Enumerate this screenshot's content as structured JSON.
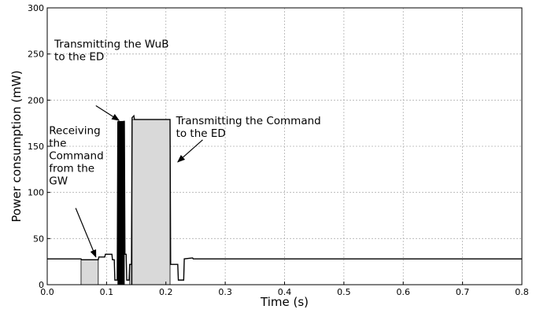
{
  "chart_data": {
    "type": "line",
    "title": "",
    "xlabel": "Time (s)",
    "ylabel": "Power consumption (mW)",
    "xlim": [
      0.0,
      0.8
    ],
    "ylim": [
      0,
      300
    ],
    "grid": true,
    "xticks": [
      "0.0",
      "0.1",
      "0.2",
      "0.3",
      "0.4",
      "0.5",
      "0.6",
      "0.7",
      "0.8"
    ],
    "yticks": [
      "0",
      "50",
      "100",
      "150",
      "200",
      "250",
      "300"
    ],
    "series": [
      {
        "points": [
          [
            0.0,
            28
          ],
          [
            0.057,
            28
          ],
          [
            0.058,
            27
          ],
          [
            0.086,
            27
          ],
          [
            0.087,
            30
          ],
          [
            0.097,
            30
          ],
          [
            0.098,
            33
          ],
          [
            0.109,
            33
          ],
          [
            0.11,
            27
          ],
          [
            0.113,
            27
          ],
          [
            0.114,
            5
          ],
          [
            0.118,
            5
          ],
          [
            0.119,
            176
          ],
          [
            0.13,
            177
          ],
          [
            0.131,
            33
          ],
          [
            0.133,
            33
          ],
          [
            0.134,
            5
          ],
          [
            0.138,
            5
          ],
          [
            0.139,
            22
          ],
          [
            0.142,
            22
          ],
          [
            0.143,
            181
          ],
          [
            0.146,
            183
          ],
          [
            0.147,
            179
          ],
          [
            0.207,
            179
          ],
          [
            0.208,
            22
          ],
          [
            0.22,
            22
          ],
          [
            0.221,
            5
          ],
          [
            0.23,
            5
          ],
          [
            0.231,
            28
          ],
          [
            0.245,
            29
          ],
          [
            0.246,
            28
          ],
          [
            0.8,
            28
          ]
        ]
      }
    ],
    "shaded_regions": [
      {
        "x0": 0.057,
        "x1": 0.086,
        "y0": 0,
        "y1": 27,
        "fill": "#d9d9d9"
      },
      {
        "x0": 0.119,
        "x1": 0.13,
        "y0": 0,
        "y1": 177,
        "fill": "#000000"
      },
      {
        "x0": 0.143,
        "x1": 0.207,
        "y0": 0,
        "y1": 179,
        "fill": "#d9d9d9"
      },
      {
        "x0": 0.139,
        "x1": 0.142,
        "y0": 0,
        "y1": 22,
        "fill": "#d9d9d9"
      }
    ],
    "annotations": [
      {
        "id": "wub",
        "lines": [
          "Transmitting the WuB",
          "to the ED"
        ],
        "text_at": [
          0.012,
          257
        ],
        "arrow_from": [
          0.082,
          194
        ],
        "arrow_to": [
          0.121,
          178
        ]
      },
      {
        "id": "cmd-tx",
        "lines": [
          "Transmitting the Command",
          "to the ED"
        ],
        "text_at": [
          0.217,
          174
        ],
        "arrow_from": [
          0.262,
          157
        ],
        "arrow_to": [
          0.22,
          133
        ]
      },
      {
        "id": "cmd-rx",
        "lines": [
          "Receiving",
          "the",
          "Command",
          "from the",
          "GW"
        ],
        "text_at": [
          0.003,
          163
        ],
        "arrow_from": [
          0.048,
          83
        ],
        "arrow_to": [
          0.082,
          30
        ]
      }
    ],
    "colors": {
      "line": "#000000",
      "grid": "#b0b0b0",
      "light_fill": "#d9d9d9",
      "dark_fill": "#000000"
    }
  }
}
